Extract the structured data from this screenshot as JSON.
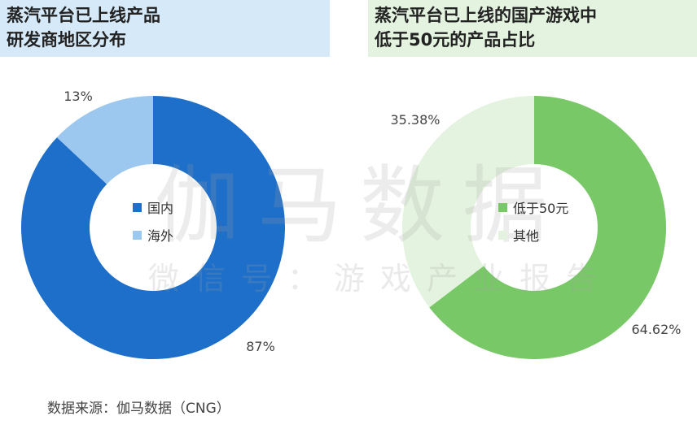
{
  "chart_data": [
    {
      "type": "pie",
      "title": "蒸汽平台已上线产品研发商地区分布",
      "title_lines": [
        "蒸汽平台已上线产品",
        "研发商地区分布"
      ],
      "categories": [
        "国内",
        "海外"
      ],
      "values": [
        87,
        13
      ],
      "value_labels": [
        "87%",
        "13%"
      ],
      "colors": [
        "#1d6fc9",
        "#9cc7ee"
      ],
      "donut": true,
      "legend_position": "center"
    },
    {
      "type": "pie",
      "title": "蒸汽平台已上线的国产游戏中低于50元的产品占比",
      "title_lines": [
        "蒸汽平台已上线的国产游戏中",
        "低于50元的产品占比"
      ],
      "categories": [
        "低于50元",
        "其他"
      ],
      "values": [
        64.62,
        35.38
      ],
      "value_labels": [
        "64.62%",
        "35.38%"
      ],
      "colors": [
        "#79c867",
        "#e4f3df"
      ],
      "donut": true,
      "legend_position": "center"
    }
  ],
  "watermark": {
    "main": "伽马数据",
    "sub": "微信号：游戏产业报告"
  },
  "source": "数据来源：伽马数据（CNG）"
}
